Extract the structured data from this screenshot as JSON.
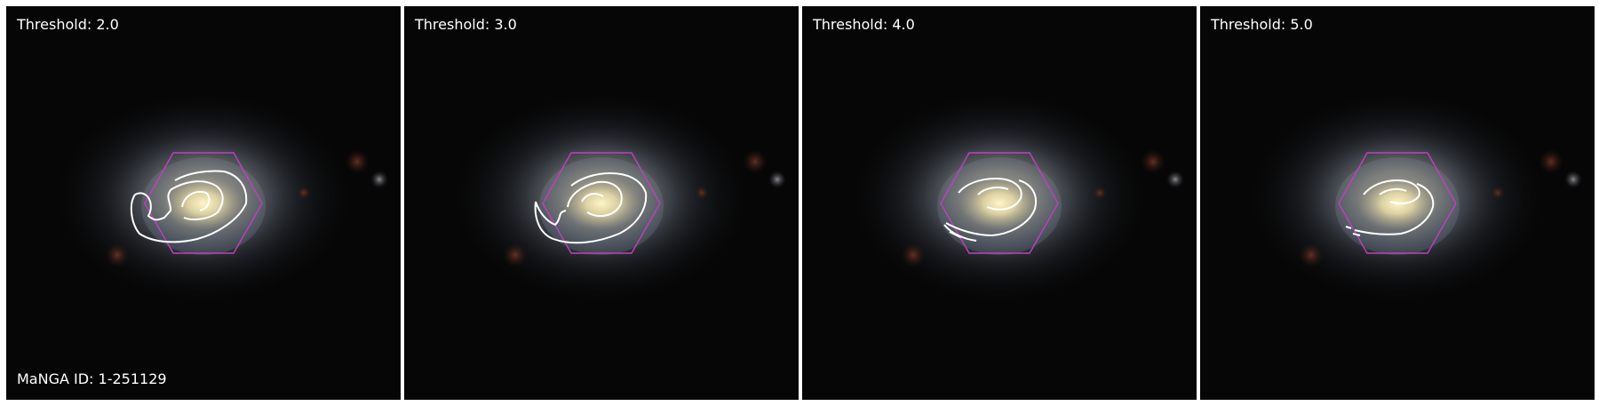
{
  "panels": [
    {
      "label": "Threshold: 2.0"
    },
    {
      "label": "Threshold: 3.0"
    },
    {
      "label": "Threshold: 4.0"
    },
    {
      "label": "Threshold: 5.0"
    }
  ],
  "id_label": "MaNGA ID: 1-251129",
  "colors": {
    "hexagon": "#c040c0",
    "contour": "#ffffff",
    "background": "#050505"
  }
}
